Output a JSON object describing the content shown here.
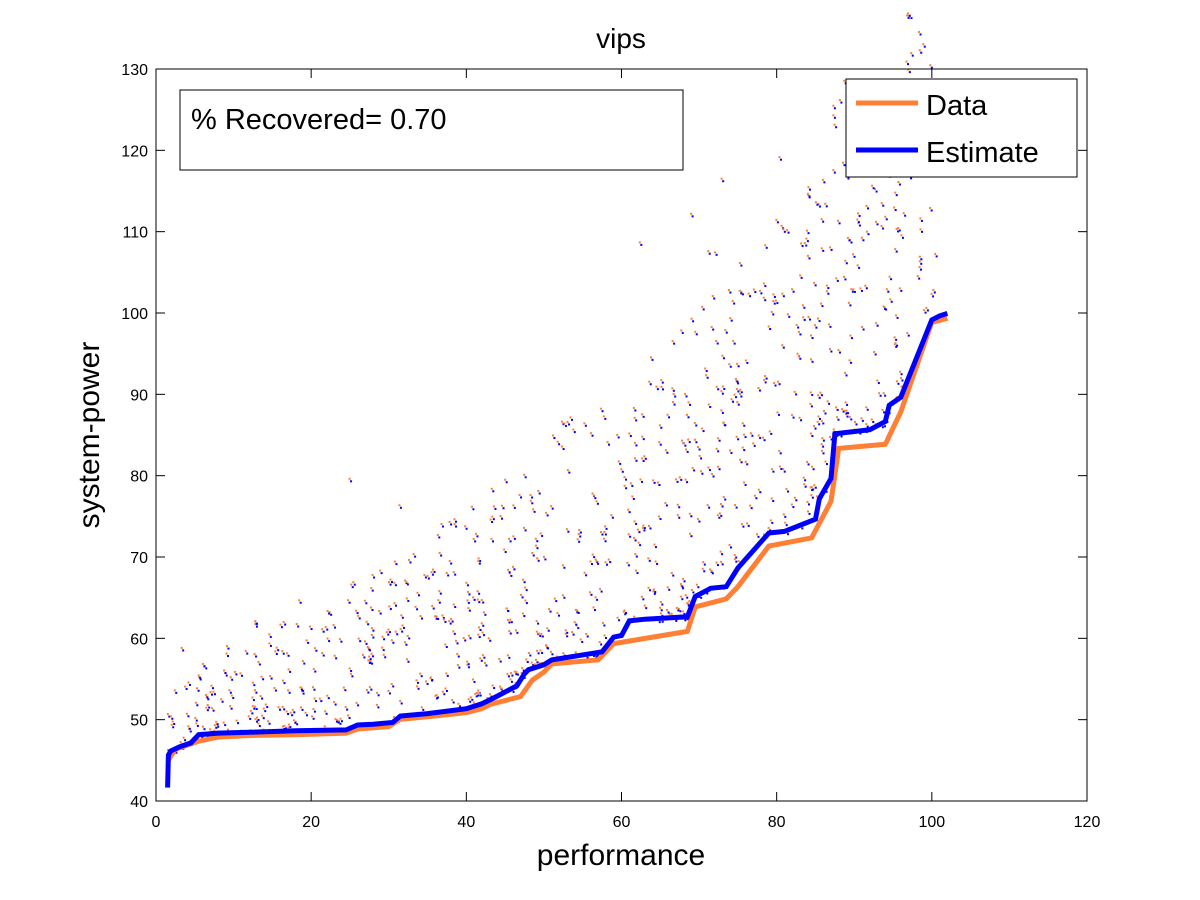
{
  "chart_data": {
    "type": "scatter",
    "title": "vips",
    "xlabel": "performance",
    "ylabel": "system-power",
    "xlim": [
      0,
      120
    ],
    "ylim": [
      40,
      130
    ],
    "xticks": [
      0,
      20,
      40,
      60,
      80,
      100,
      120
    ],
    "yticks": [
      40,
      50,
      60,
      70,
      80,
      90,
      100,
      110,
      120,
      130
    ],
    "grid": false,
    "legend_position": "top-right",
    "annotation": "% Recovered= 0.70",
    "colors": {
      "data": "#ff7f35",
      "estimate": "#0000ff"
    },
    "series": [
      {
        "name": "Data",
        "kind": "line",
        "x": [
          1.5,
          1.8,
          2.5,
          4.0,
          5.5,
          8.0,
          12.0,
          18.0,
          24.5,
          26.0,
          30.0,
          31.5,
          35.0,
          40.0,
          42.0,
          43.0,
          47.0,
          48.5,
          50.0,
          51.0,
          57.0,
          59.0,
          68.5,
          69.5,
          73.5,
          75.0,
          79.0,
          84.5,
          87.0,
          88.0,
          94.0,
          96.0,
          100.0,
          102.0
        ],
        "y": [
          45.0,
          45.5,
          46.5,
          47.0,
          47.5,
          48.0,
          48.2,
          48.3,
          48.5,
          49.0,
          49.3,
          50.2,
          50.5,
          51.0,
          51.5,
          52.0,
          53.0,
          55.0,
          56.0,
          57.0,
          57.5,
          59.5,
          61.0,
          64.0,
          65.0,
          66.5,
          71.5,
          72.5,
          77.0,
          83.5,
          84.0,
          88.0,
          99.0,
          99.5
        ]
      },
      {
        "name": "Estimate",
        "kind": "line",
        "x": [
          1.5,
          1.6,
          1.9,
          3.0,
          4.5,
          5.5,
          8.0,
          12.0,
          18.0,
          24.5,
          26.0,
          28.0,
          30.5,
          31.5,
          35.0,
          40.0,
          42.0,
          43.5,
          46.5,
          47.5,
          48.0,
          50.0,
          51.0,
          57.5,
          59.0,
          60.0,
          61.0,
          63.0,
          68.5,
          69.5,
          71.5,
          73.5,
          75.0,
          79.0,
          81.0,
          85.0,
          85.5,
          87.0,
          87.5,
          92.0,
          94.0,
          94.5,
          96.0,
          100.0,
          101.0,
          102.0
        ],
        "y": [
          41.5,
          45.5,
          46.0,
          46.5,
          47.0,
          48.0,
          48.2,
          48.3,
          48.5,
          48.6,
          49.2,
          49.3,
          49.5,
          50.3,
          50.6,
          51.2,
          51.8,
          52.5,
          54.0,
          55.5,
          56.0,
          56.6,
          57.2,
          58.2,
          60.0,
          60.2,
          62.0,
          62.2,
          62.5,
          65.0,
          66.0,
          66.2,
          68.5,
          72.8,
          73.0,
          74.5,
          77.0,
          79.5,
          85.0,
          85.5,
          86.5,
          88.5,
          89.5,
          99.0,
          99.5,
          99.8
        ]
      }
    ],
    "scatter_note": "Many orange (Data) and blue (Estimate) point pairs scattered above both lines between x≈1 and x≈101."
  }
}
